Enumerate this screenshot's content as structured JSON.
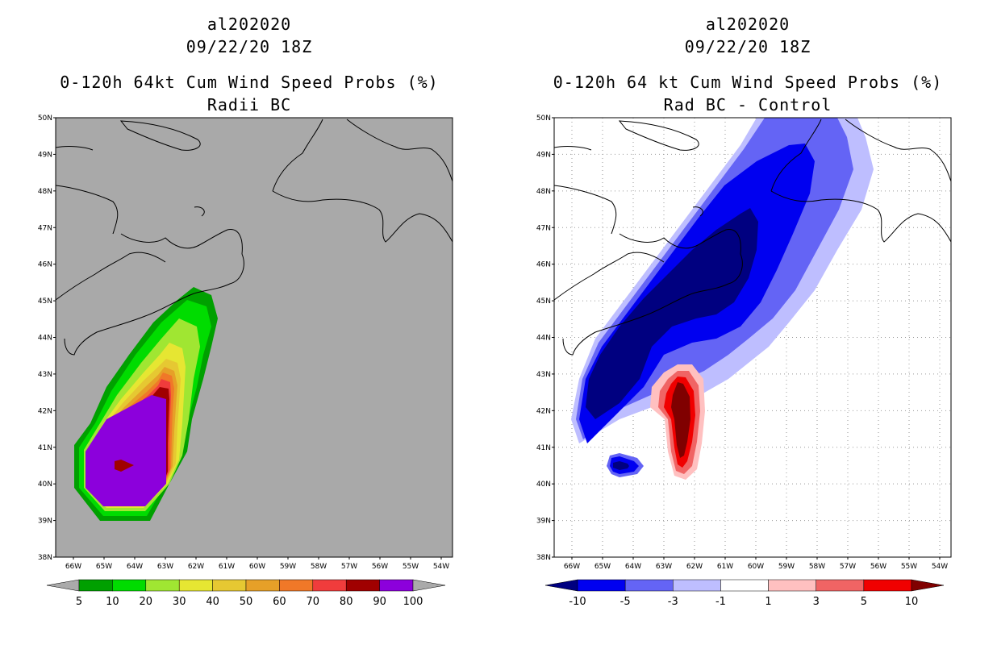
{
  "left": {
    "title_line1": "al202020",
    "title_line2": "09/22/20 18Z",
    "title_line3": "0-120h 64kt Cum Wind Speed Probs (%)",
    "title_line4": "Radii BC",
    "background_color": "#a9a9a9",
    "latitudes": [
      "50N",
      "49N",
      "48N",
      "47N",
      "46N",
      "45N",
      "44N",
      "43N",
      "42N",
      "41N",
      "40N",
      "39N",
      "38N"
    ],
    "longitudes": [
      "66W",
      "65W",
      "64W",
      "63W",
      "62W",
      "61W",
      "60W",
      "59W",
      "58W",
      "57W",
      "56W",
      "55W",
      "54W"
    ],
    "colorbar": {
      "colors": [
        "#aaaaaa",
        "#00a000",
        "#00dc00",
        "#a0e632",
        "#e6e632",
        "#e6c832",
        "#e6a028",
        "#f07828",
        "#f03c3c",
        "#a00000",
        "#8c00dc",
        "#aaaaaa"
      ],
      "labels": [
        "5",
        "10",
        "20",
        "30",
        "40",
        "50",
        "60",
        "70",
        "80",
        "90",
        "100"
      ]
    }
  },
  "right": {
    "title_line1": "al202020",
    "title_line2": "09/22/20 18Z",
    "title_line3": "0-120h 64 kt Cum Wind Speed Probs (%)",
    "title_line4": "Rad BC - Control",
    "latitudes": [
      "50N",
      "49N",
      "48N",
      "47N",
      "46N",
      "45N",
      "44N",
      "43N",
      "42N",
      "41N",
      "40N",
      "39N",
      "38N"
    ],
    "longitudes": [
      "66W",
      "65W",
      "64W",
      "63W",
      "62W",
      "61W",
      "60W",
      "59W",
      "58W",
      "57W",
      "56W",
      "55W",
      "54W"
    ],
    "colorbar": {
      "colors": [
        "#000080",
        "#0000f0",
        "#6464f5",
        "#bebeff",
        "#ffffff",
        "#ffc0c0",
        "#f06464",
        "#f00000",
        "#800000"
      ],
      "labels": [
        "-10",
        "-5",
        "-3",
        "-1",
        "1",
        "3",
        "5",
        "10"
      ]
    }
  }
}
